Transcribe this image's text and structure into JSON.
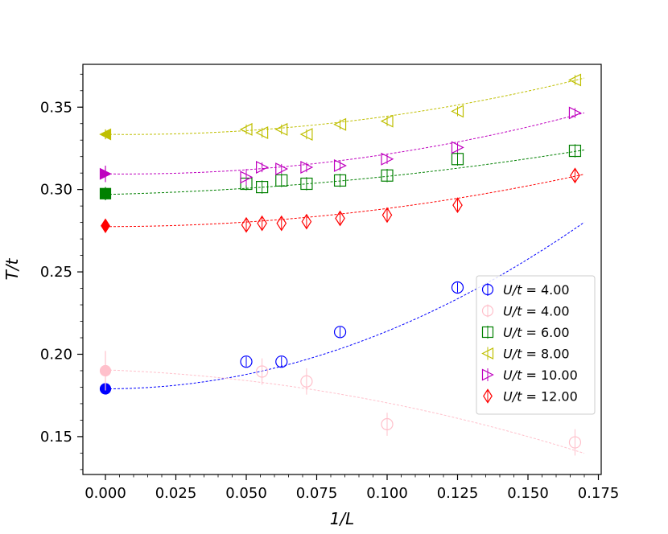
{
  "chart_data": {
    "type": "scatter",
    "title": "",
    "xlabel": "1/L",
    "ylabel": "T/t",
    "xlim": [
      -0.008,
      0.176
    ],
    "ylim": [
      0.127,
      0.376
    ],
    "xticks": [
      0.0,
      0.025,
      0.05,
      0.075,
      0.1,
      0.125,
      0.15,
      0.175
    ],
    "xtick_labels": [
      "0.000",
      "0.025",
      "0.050",
      "0.075",
      "0.100",
      "0.125",
      "0.150",
      "0.175"
    ],
    "yticks": [
      0.15,
      0.2,
      0.25,
      0.3,
      0.35
    ],
    "ytick_labels": [
      "0.15",
      "0.20",
      "0.25",
      "0.30",
      "0.35"
    ],
    "grid": false,
    "legend_position": "center-right",
    "series": [
      {
        "label_var": "U/t",
        "label_eq": " = 4.00",
        "color": "#0000ff",
        "marker": "circle",
        "x": [
          0.05,
          0.0625,
          0.0833,
          0.125
        ],
        "y": [
          0.1955,
          0.1955,
          0.2135,
          0.2405
        ],
        "err": [
          0.003,
          0.003,
          0.003,
          0.003
        ],
        "extrapolated": {
          "x": 0.0,
          "y": 0.179,
          "err": 0.002
        },
        "fit": {
          "a": 0.179,
          "b": 0.0,
          "c": 3.5,
          "xmax": 0.17
        }
      },
      {
        "label_var": "U/t",
        "label_eq": " = 4.00",
        "color": "#ffc0cb",
        "marker": "circle",
        "x": [
          0.0556,
          0.0714,
          0.1,
          0.1667
        ],
        "y": [
          0.1895,
          0.1835,
          0.1575,
          0.1465
        ],
        "err": [
          0.008,
          0.008,
          0.007,
          0.008
        ],
        "extrapolated": {
          "x": 0.0,
          "y": 0.19,
          "err": 0.012
        },
        "fit": {
          "a": 0.1905,
          "b": -0.06,
          "c": -1.4,
          "xmax": 0.17
        }
      },
      {
        "label_var": "U/t",
        "label_eq": " = 6.00",
        "color": "#008000",
        "marker": "square",
        "x": [
          0.05,
          0.0556,
          0.0625,
          0.0714,
          0.0833,
          0.1,
          0.125,
          0.1667
        ],
        "y": [
          0.3035,
          0.3015,
          0.3055,
          0.3035,
          0.3055,
          0.3085,
          0.3185,
          0.3235
        ],
        "err": [
          0.004,
          0.004,
          0.004,
          0.004,
          0.004,
          0.004,
          0.004,
          0.004
        ],
        "extrapolated": {
          "x": 0.0,
          "y": 0.2975,
          "err": 0.004
        },
        "fit": {
          "a": 0.297,
          "b": 0.04,
          "c": 0.7,
          "xmax": 0.17
        }
      },
      {
        "label_var": "U/t",
        "label_eq": " = 8.00",
        "color": "#bfbf00",
        "marker": "triangle-left",
        "x": [
          0.05,
          0.0556,
          0.0625,
          0.0714,
          0.0833,
          0.1,
          0.125,
          0.1667
        ],
        "y": [
          0.3365,
          0.3345,
          0.3365,
          0.3335,
          0.3395,
          0.3415,
          0.3475,
          0.3665
        ],
        "err": [
          0.003,
          0.003,
          0.003,
          0.003,
          0.003,
          0.003,
          0.003,
          0.003
        ],
        "extrapolated": {
          "x": 0.0,
          "y": 0.3335,
          "err": 0.003
        },
        "fit": {
          "a": 0.3335,
          "b": -0.02,
          "c": 1.3,
          "xmax": 0.17
        }
      },
      {
        "label_var": "U/t",
        "label_eq": " = 10.00",
        "color": "#bf00bf",
        "marker": "triangle-right",
        "x": [
          0.05,
          0.0556,
          0.0625,
          0.0714,
          0.0833,
          0.1,
          0.125,
          0.1667
        ],
        "y": [
          0.3075,
          0.3135,
          0.3125,
          0.3135,
          0.3145,
          0.3185,
          0.3255,
          0.3465
        ],
        "err": [
          0.005,
          0.003,
          0.003,
          0.003,
          0.003,
          0.003,
          0.003,
          0.003
        ],
        "extrapolated": {
          "x": 0.0,
          "y": 0.3095,
          "err": 0.005
        },
        "fit": {
          "a": 0.3095,
          "b": -0.02,
          "c": 1.4,
          "xmax": 0.17
        }
      },
      {
        "label_var": "U/t",
        "label_eq": " = 12.00",
        "color": "#ff0000",
        "marker": "diamond",
        "x": [
          0.05,
          0.0556,
          0.0625,
          0.0714,
          0.0833,
          0.1,
          0.125,
          0.1667
        ],
        "y": [
          0.2785,
          0.2795,
          0.2795,
          0.2805,
          0.2825,
          0.2845,
          0.2905,
          0.3085
        ],
        "err": [
          0.004,
          0.004,
          0.004,
          0.004,
          0.004,
          0.004,
          0.004,
          0.004
        ],
        "extrapolated": {
          "x": 0.0,
          "y": 0.278,
          "err": 0.003
        },
        "fit": {
          "a": 0.2775,
          "b": 0.0,
          "c": 1.1,
          "xmax": 0.17
        }
      }
    ]
  }
}
